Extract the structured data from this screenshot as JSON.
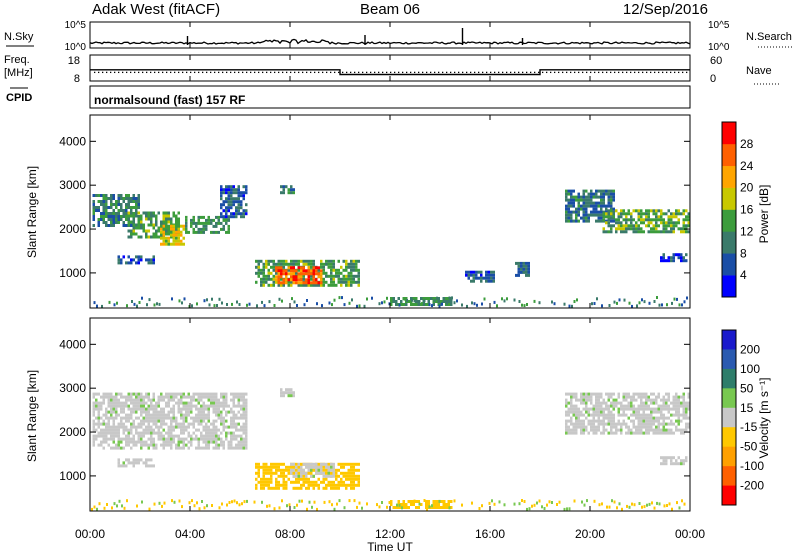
{
  "header": {
    "station": "Adak West (fitACF)",
    "beam": "Beam 06",
    "date": "12/Sep/2016"
  },
  "nsky_panel": {
    "left_label": "N.Sky",
    "right_label": "N.Search",
    "left_ticks": [
      "10^5",
      "10^0"
    ],
    "right_ticks": [
      "10^5",
      "10^0"
    ]
  },
  "freq_panel": {
    "left_label_line1": "Freq.",
    "left_label_line2": "[MHz]",
    "right_label": "Nave",
    "left_ticks": [
      "18",
      "8"
    ],
    "right_ticks": [
      "60",
      "0"
    ]
  },
  "cpid_panel": {
    "left_label": "CPID",
    "mode_text": "normalsound (fast) 157 RF"
  },
  "power_panel": {
    "ylabel": "Slant Range [km]",
    "yticks": [
      "4000",
      "3000",
      "2000",
      "1000"
    ],
    "colorbar_label": "Power [dB]",
    "colorbar_ticks": [
      "28",
      "24",
      "20",
      "16",
      "12",
      "8",
      "4"
    ],
    "colors": [
      "#0000ff",
      "#1a4ea6",
      "#3a7a6a",
      "#3c9c3c",
      "#c8c800",
      "#ffa500",
      "#ff6000",
      "#ff0000"
    ]
  },
  "velocity_panel": {
    "ylabel": "Slant Range [km]",
    "yticks": [
      "4000",
      "3000",
      "2000",
      "1000"
    ],
    "colorbar_label": "Velocity [m s⁻¹]",
    "colorbar_ticks": [
      "200",
      "100",
      "50",
      "15",
      "-15",
      "-50",
      "-100",
      "-200"
    ],
    "colors": [
      "#1a1acc",
      "#2a5ab0",
      "#2e7d6a",
      "#78c850",
      "#c8c8c8",
      "#ffc800",
      "#ffa000",
      "#ff6000",
      "#ff0000"
    ]
  },
  "xaxis": {
    "label": "Time UT",
    "ticks": [
      "00:00",
      "04:00",
      "08:00",
      "12:00",
      "16:00",
      "20:00",
      "00:00"
    ]
  },
  "chart_data": {
    "type": "heatmap",
    "title": "Adak West (fitACF) Beam 06 12/Sep/2016",
    "xlabel": "Time UT",
    "ylabel": "Slant Range [km]",
    "x_range_hours": [
      0,
      24
    ],
    "y_range_km": [
      200,
      4600
    ],
    "frequency_mhz_segments": [
      {
        "start_h": 0,
        "end_h": 10,
        "freq": 12.3
      },
      {
        "start_h": 10,
        "end_h": 18,
        "freq": 10.5
      },
      {
        "start_h": 18,
        "end_h": 24,
        "freq": 12.3
      }
    ],
    "nave_level": 20,
    "nsky_level_log": 0.4,
    "power_regions": [
      {
        "t0": 0.1,
        "t1": 2.0,
        "r0": 2050,
        "r1": 2800,
        "power": 10
      },
      {
        "t0": 1.5,
        "t1": 3.6,
        "r0": 1850,
        "r1": 2400,
        "power": 13
      },
      {
        "t0": 2.8,
        "t1": 3.8,
        "r0": 1650,
        "r1": 2100,
        "power": 19
      },
      {
        "t0": 3.8,
        "t1": 5.6,
        "r0": 1950,
        "r1": 2300,
        "power": 12
      },
      {
        "t0": 5.2,
        "t1": 6.2,
        "r0": 2300,
        "r1": 3000,
        "power": 7
      },
      {
        "t0": 1.1,
        "t1": 2.6,
        "r0": 1200,
        "r1": 1400,
        "power": 6
      },
      {
        "t0": 7.6,
        "t1": 8.2,
        "r0": 2800,
        "r1": 3000,
        "power": 9
      },
      {
        "t0": 6.6,
        "t1": 10.8,
        "r0": 750,
        "r1": 1300,
        "power": 13
      },
      {
        "t0": 7.4,
        "t1": 9.3,
        "r0": 800,
        "r1": 1150,
        "power": 26
      },
      {
        "t0": 12.0,
        "t1": 14.5,
        "r0": 300,
        "r1": 450,
        "power": 12
      },
      {
        "t0": 19.0,
        "t1": 21.0,
        "r0": 2200,
        "r1": 2900,
        "power": 9
      },
      {
        "t0": 20.5,
        "t1": 24.0,
        "r0": 1950,
        "r1": 2450,
        "power": 14
      },
      {
        "t0": 22.8,
        "t1": 23.9,
        "r0": 1250,
        "r1": 1450,
        "power": 5
      },
      {
        "t0": 15.0,
        "t1": 16.2,
        "r0": 800,
        "r1": 1050,
        "power": 7
      },
      {
        "t0": 17.0,
        "t1": 17.6,
        "r0": 950,
        "r1": 1250,
        "power": 8
      }
    ],
    "velocity_regions": [
      {
        "t0": 0.1,
        "t1": 6.2,
        "r0": 1650,
        "r1": 2900,
        "velocity": 0
      },
      {
        "t0": 1.1,
        "t1": 2.6,
        "r0": 1200,
        "r1": 1400,
        "velocity": 0
      },
      {
        "t0": 7.6,
        "t1": 8.2,
        "r0": 2800,
        "r1": 3000,
        "velocity": 0
      },
      {
        "t0": 6.6,
        "t1": 10.8,
        "r0": 750,
        "r1": 1300,
        "velocity": -40
      },
      {
        "t0": 8.0,
        "t1": 9.8,
        "r0": 1000,
        "r1": 1300,
        "velocity": 0
      },
      {
        "t0": 12.0,
        "t1": 14.5,
        "r0": 300,
        "r1": 450,
        "velocity": -25
      },
      {
        "t0": 19.0,
        "t1": 24.0,
        "r0": 1950,
        "r1": 2900,
        "velocity": 0
      },
      {
        "t0": 22.8,
        "t1": 23.9,
        "r0": 1250,
        "r1": 1450,
        "velocity": 0
      }
    ]
  }
}
